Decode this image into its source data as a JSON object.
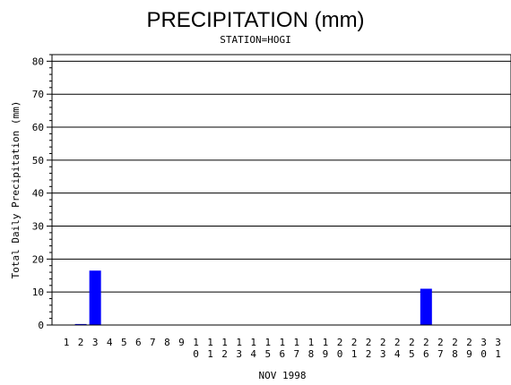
{
  "chart_data": {
    "type": "bar",
    "title": "PRECIPITATION (mm)",
    "subtitle": "STATION=HOGI",
    "xlabel": "NOV 1998",
    "ylabel": "Total Daily Precipitation (mm)",
    "ylim": [
      0,
      82
    ],
    "yticks": [
      0,
      10,
      20,
      30,
      40,
      50,
      60,
      70,
      80
    ],
    "grid": true,
    "bar_color": "#0000ff",
    "categories": [
      "1",
      "2",
      "3",
      "4",
      "5",
      "6",
      "7",
      "8",
      "9",
      "10",
      "11",
      "12",
      "13",
      "14",
      "15",
      "16",
      "17",
      "18",
      "19",
      "20",
      "21",
      "22",
      "23",
      "24",
      "25",
      "26",
      "27",
      "28",
      "29",
      "30",
      "31"
    ],
    "values": [
      0,
      0.3,
      16.5,
      0,
      0,
      0,
      0,
      0,
      0,
      0,
      0,
      0,
      0,
      0,
      0,
      0,
      0,
      0,
      0,
      0,
      0,
      0,
      0,
      0,
      0,
      11,
      0,
      0,
      0,
      0,
      0
    ]
  }
}
